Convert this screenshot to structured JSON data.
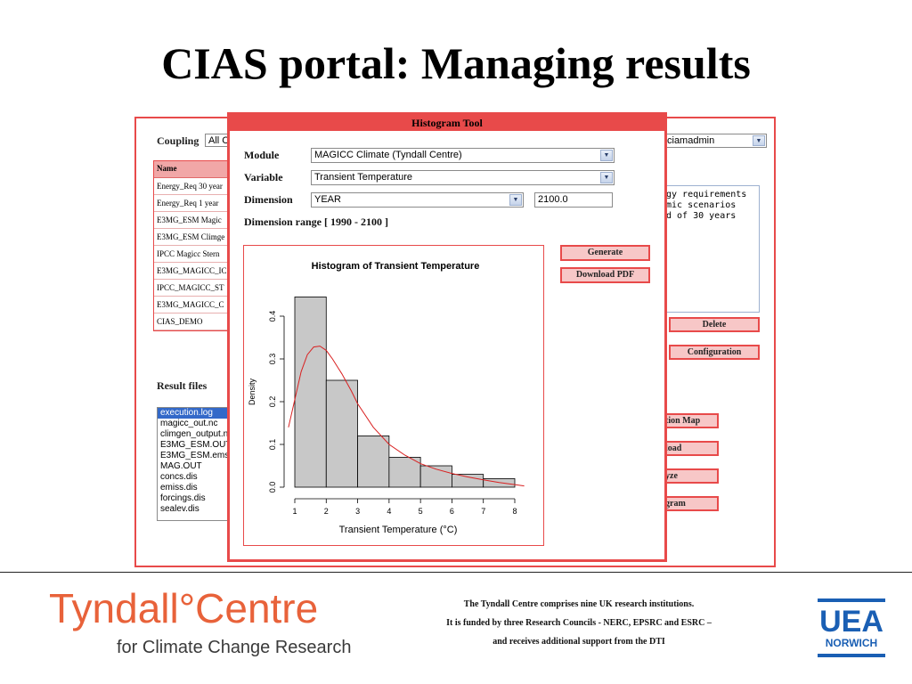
{
  "slide": {
    "title": "CIAS portal: Managing results"
  },
  "portal": {
    "coupling_label": "Coupling",
    "coupling_value": "All C",
    "user_value": "ciamadmin",
    "table_header": "Name",
    "table_rows": [
      "Energy_Req 30 year",
      "Energy_Req 1 year",
      "E3MG_ESM Magic",
      "E3MG_ESM Climge",
      "IPCC Magicc Stern",
      "E3MG_MAGICC_IC",
      "IPCC_MAGICC_ST",
      "E3MG_MAGICC_C",
      "CIAS_DEMO"
    ],
    "description_lines": [
      "gy requirements",
      "mic scenarios",
      "d of 30 years"
    ],
    "result_files_label": "Result files",
    "files": [
      "execution.log",
      "magicc_out.nc",
      "climgen_output.n",
      "E3MG_ESM.OUT",
      "E3MG_ESM.ems",
      "MAG.OUT",
      "concs.dis",
      "emiss.dis",
      "forcings.dis",
      "sealev.dis"
    ],
    "buttons": {
      "delete": "Delete",
      "configuration": "Configuration",
      "location_map": "tion Map",
      "download": "load",
      "analyze": "yze",
      "histogram": "gram"
    }
  },
  "dialog": {
    "title": "Histogram Tool",
    "module_label": "Module",
    "module_value": "MAGICC Climate (Tyndall Centre)",
    "variable_label": "Variable",
    "variable_value": "Transient Temperature",
    "dimension_label": "Dimension",
    "dimension_value": "YEAR",
    "dimension_input": "2100.0",
    "dimension_range": "Dimension range [ 1990 - 2100 ]",
    "generate_label": "Generate",
    "download_pdf_label": "Download PDF"
  },
  "chart_data": {
    "type": "bar",
    "title": "Histogram of Transient Temperature",
    "xlabel": "Transient Temperature  (°C)",
    "ylabel": "Density",
    "xlim": [
      1,
      8
    ],
    "ylim": [
      0,
      0.45
    ],
    "x_ticks": [
      1,
      2,
      3,
      4,
      5,
      6,
      7,
      8
    ],
    "y_ticks": [
      0.0,
      0.1,
      0.2,
      0.3,
      0.4
    ],
    "y_tick_labels": [
      "0.0",
      "0.1",
      "0.2",
      "0.3",
      "0.4"
    ],
    "bins": [
      {
        "start": 1,
        "end": 2,
        "density": 0.445
      },
      {
        "start": 2,
        "end": 3,
        "density": 0.25
      },
      {
        "start": 3,
        "end": 4,
        "density": 0.12
      },
      {
        "start": 4,
        "end": 5,
        "density": 0.07
      },
      {
        "start": 5,
        "end": 6,
        "density": 0.05
      },
      {
        "start": 6,
        "end": 7,
        "density": 0.03
      },
      {
        "start": 7,
        "end": 8,
        "density": 0.02
      }
    ],
    "density_curve": [
      [
        0.8,
        0.14
      ],
      [
        1.0,
        0.205
      ],
      [
        1.2,
        0.27
      ],
      [
        1.4,
        0.31
      ],
      [
        1.6,
        0.328
      ],
      [
        1.8,
        0.33
      ],
      [
        2.0,
        0.32
      ],
      [
        2.2,
        0.3
      ],
      [
        2.5,
        0.265
      ],
      [
        2.8,
        0.225
      ],
      [
        3.0,
        0.195
      ],
      [
        3.5,
        0.14
      ],
      [
        4.0,
        0.1
      ],
      [
        4.5,
        0.075
      ],
      [
        5.0,
        0.055
      ],
      [
        5.5,
        0.042
      ],
      [
        6.0,
        0.032
      ],
      [
        6.5,
        0.024
      ],
      [
        7.0,
        0.017
      ],
      [
        7.5,
        0.011
      ],
      [
        8.0,
        0.006
      ],
      [
        8.3,
        0.003
      ]
    ],
    "colors": {
      "bar_fill": "#c8c8c8",
      "bar_stroke": "#000000",
      "curve": "#d92020"
    }
  },
  "footer": {
    "logo_main": "Tyndall°Centre",
    "logo_sub": "for Climate Change Research",
    "line1": "The Tyndall Centre comprises nine UK research institutions.",
    "line2": "It is funded by three Research Councils - NERC, EPSRC and ESRC –",
    "line3": "and receives additional support from the DTI",
    "uea_top": "UEA",
    "uea_bottom": "NORWICH",
    "brand_color": "#e8623a",
    "uea_color": "#1a5fb4"
  }
}
